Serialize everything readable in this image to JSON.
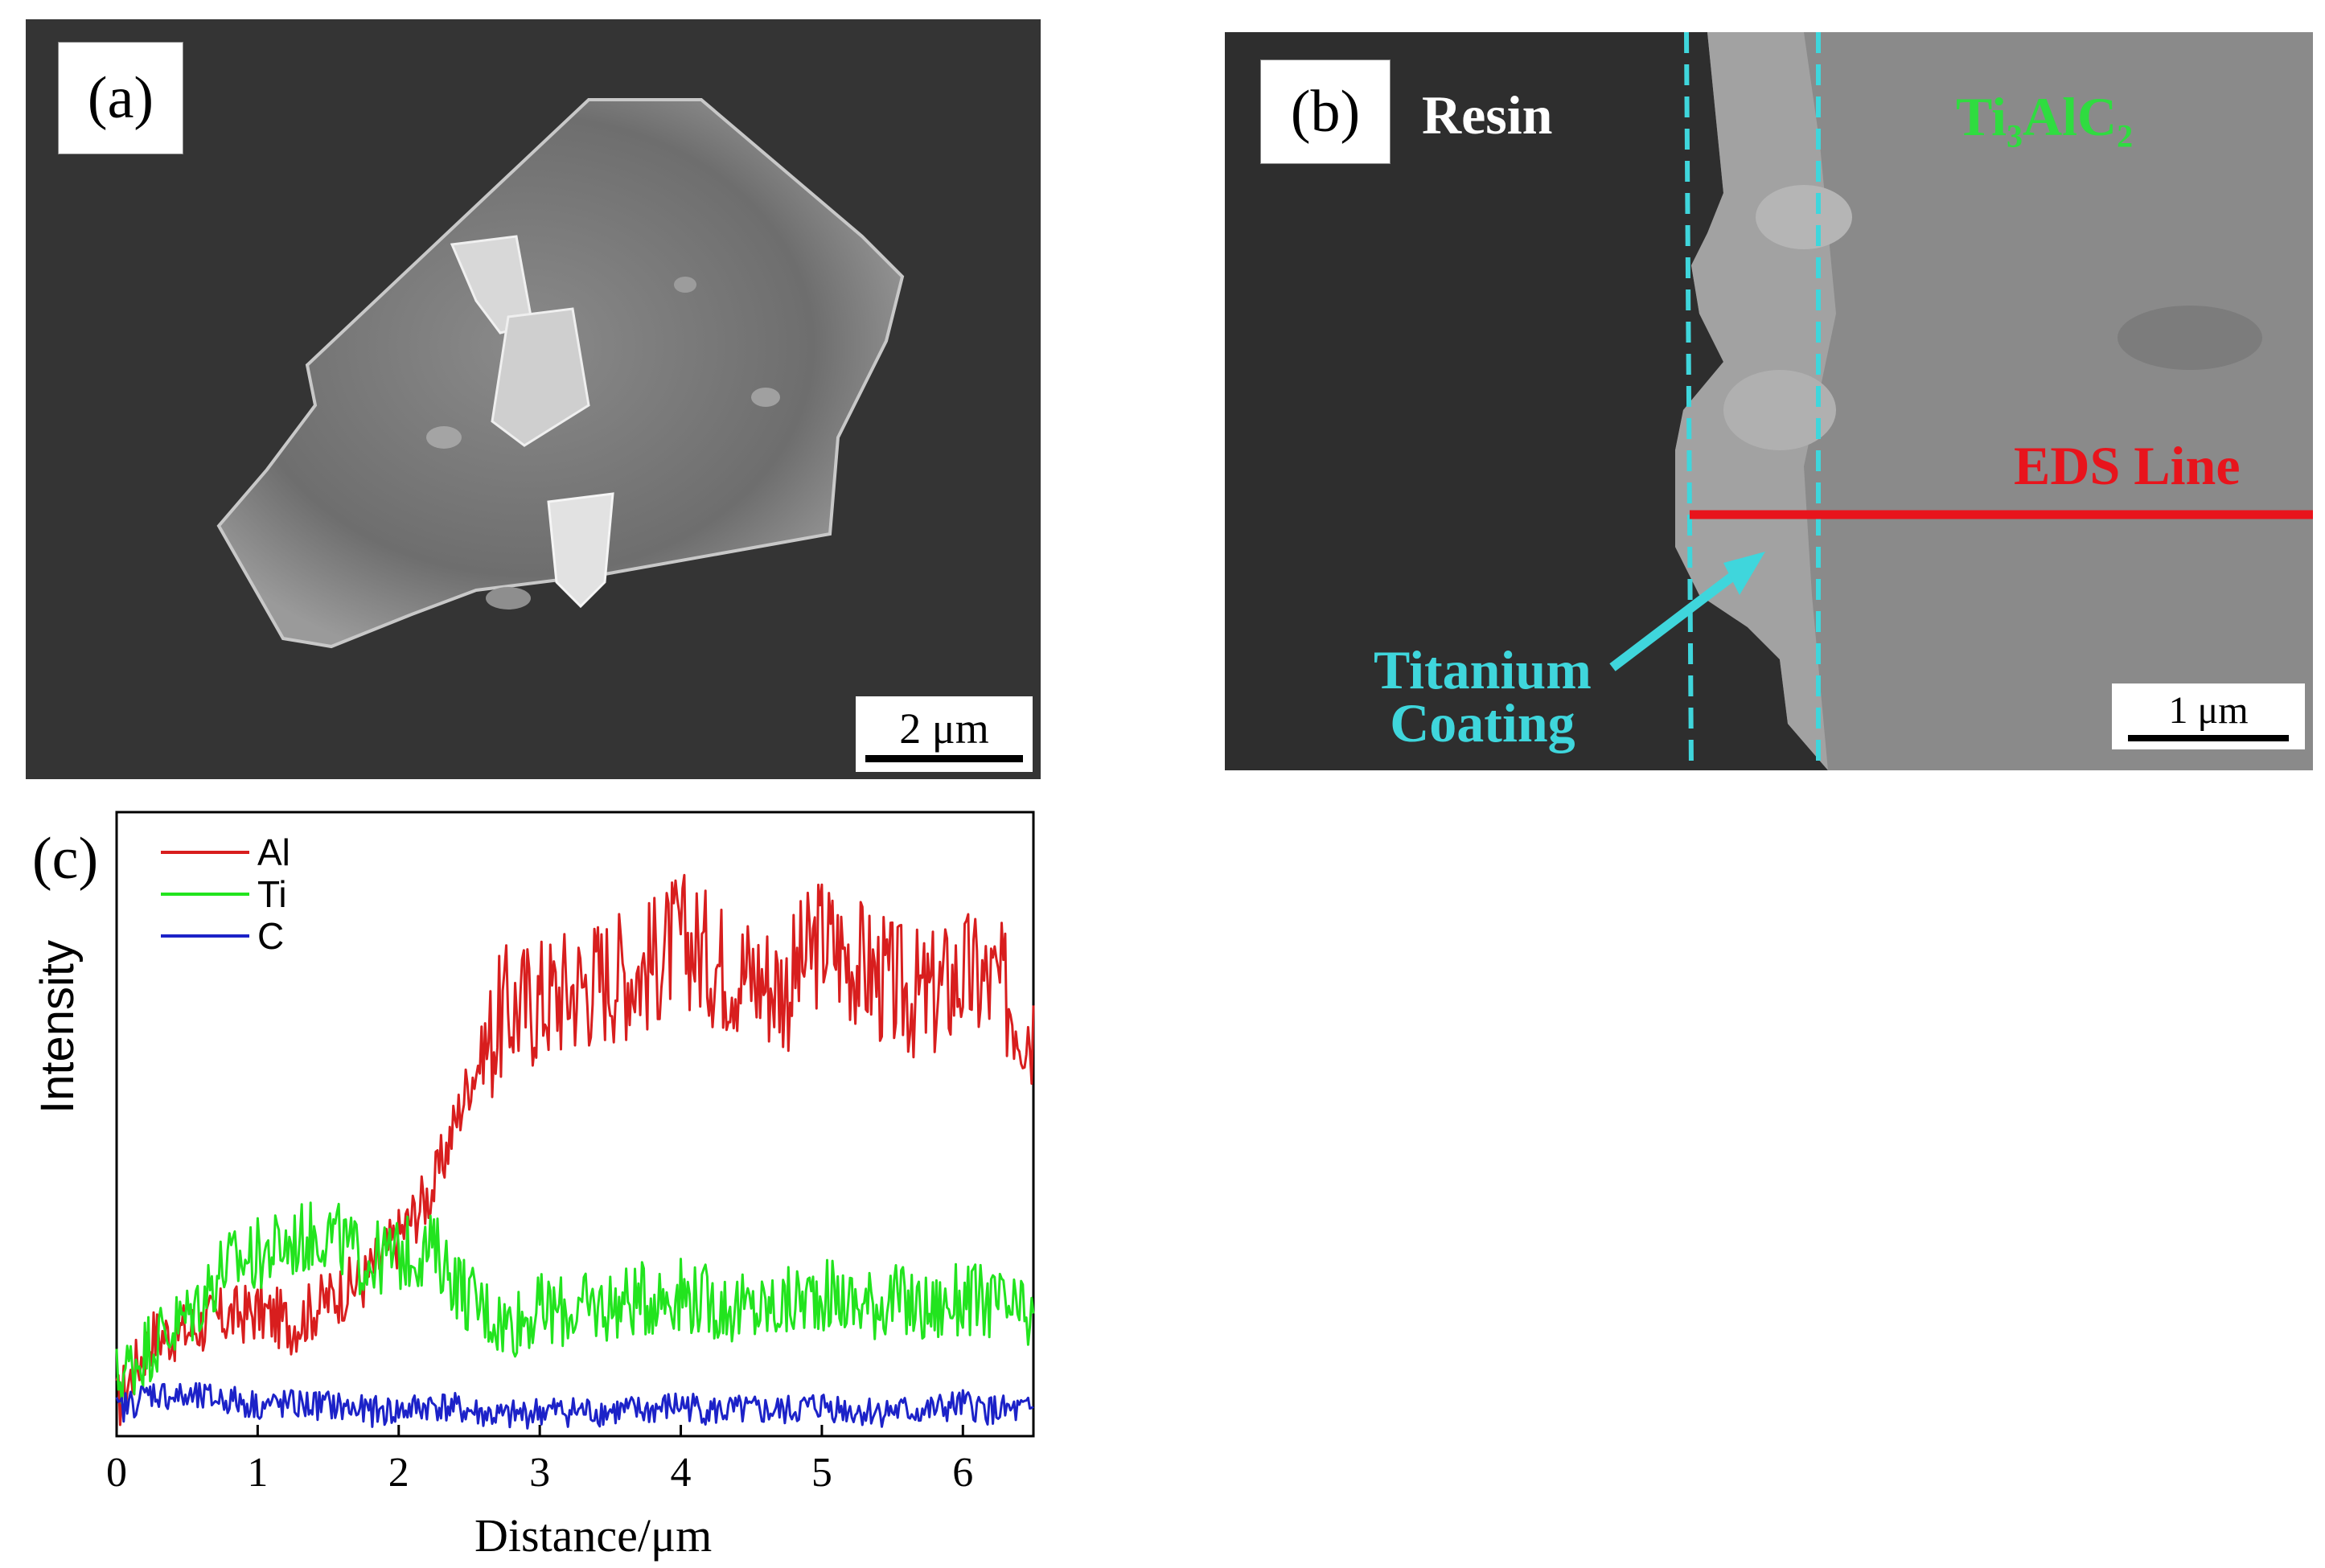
{
  "panel_a": {
    "label": "(a)",
    "scale_bar": "2 μm"
  },
  "panel_b": {
    "label": "(b)",
    "resin_label": "Resin",
    "phase_label": {
      "base": "Ti",
      "sub1": "3",
      "mid": "AlC",
      "sub2": "2"
    },
    "eds_label": "EDS Line",
    "coating_label_line1": "Titanium",
    "coating_label_line2": "Coating",
    "scale_bar": "1 μm",
    "colors": {
      "coating": "#3fd6dc",
      "phase": "#2fdc40",
      "eds": "#e8141c"
    }
  },
  "panel_c": {
    "label": "(c)",
    "ylabel": "Intensity",
    "xlabel": "Distance/μm"
  },
  "chart_data": {
    "type": "line",
    "title": "",
    "xlabel": "Distance/μm",
    "ylabel": "Intensity",
    "xlim": [
      0,
      6.5
    ],
    "ylim": [
      0,
      100
    ],
    "xticks": [
      "0",
      "1",
      "2",
      "3",
      "4",
      "5",
      "6"
    ],
    "legend_position": "top-left",
    "x": [
      0,
      0.25,
      0.5,
      0.75,
      1.0,
      1.25,
      1.5,
      1.75,
      2.0,
      2.25,
      2.5,
      2.75,
      3.0,
      3.25,
      3.5,
      3.75,
      4.0,
      4.25,
      4.5,
      4.75,
      5.0,
      5.25,
      5.5,
      5.75,
      6.0,
      6.25,
      6.5
    ],
    "series": [
      {
        "name": "Al",
        "color": "#d81e1e",
        "values": [
          5,
          16,
          17,
          19,
          20,
          18,
          22,
          25,
          32,
          40,
          57,
          68,
          70,
          72,
          74,
          75,
          80,
          76,
          74,
          72,
          80,
          76,
          72,
          70,
          74,
          72,
          66
        ]
      },
      {
        "name": "Ti",
        "color": "#22e41e",
        "values": [
          9,
          15,
          19,
          27,
          29,
          31,
          33,
          28,
          29,
          30,
          22,
          18,
          20,
          20,
          21,
          22,
          23,
          21,
          20,
          21,
          23,
          21,
          22,
          20,
          22,
          21,
          18
        ]
      },
      {
        "name": "C",
        "color": "#1c22c8",
        "values": [
          4,
          7,
          6,
          6,
          5,
          5,
          5,
          4,
          4,
          5,
          4,
          3,
          4,
          4,
          4,
          4,
          5,
          4,
          4,
          4,
          5,
          4,
          4,
          4,
          5,
          4,
          4
        ]
      }
    ]
  }
}
